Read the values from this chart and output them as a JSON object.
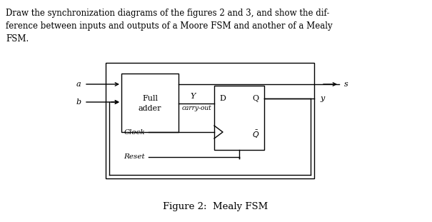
{
  "bg_color": "#ffffff",
  "text_color": "#000000",
  "caption": "Figure 2:  Mealy FSM",
  "header_lines": [
    "Draw the synchronization diagrams of the figures 2 and 3, and show the dif-",
    "ference between inputs and outputs of a Moore FSM and another of a Mealy",
    "FSM."
  ],
  "header_fontsize": 8.5,
  "caption_fontsize": 9.5,
  "diagram_fontsize": 8.0
}
